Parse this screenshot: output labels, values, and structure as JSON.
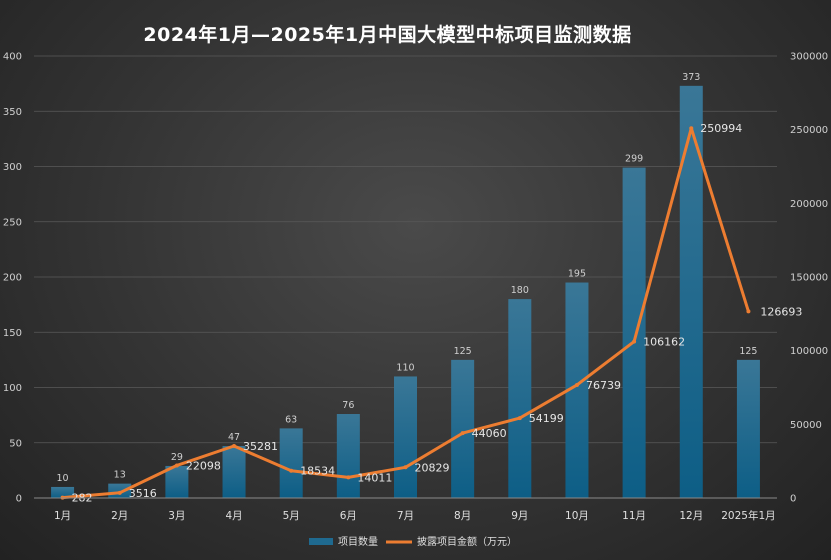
{
  "chart_data": {
    "type": "bar",
    "title": "2024年1月—2025年1月中国大模型中标项目监测数据",
    "categories": [
      "1月",
      "2月",
      "3月",
      "4月",
      "5月",
      "6月",
      "7月",
      "8月",
      "9月",
      "10月",
      "11月",
      "12月",
      "2025年1月"
    ],
    "series": [
      {
        "name": "项目数量",
        "type": "bar",
        "axis": "left",
        "color": "#1f6a90",
        "values": [
          10,
          13,
          29,
          47,
          63,
          76,
          110,
          125,
          180,
          195,
          299,
          373,
          125
        ]
      },
      {
        "name": "披露项目金额（万元）",
        "type": "line",
        "axis": "right",
        "color": "#ed7d31",
        "values": [
          282,
          3516,
          22098,
          35281,
          18534,
          14011,
          20829,
          44060,
          54199,
          76739,
          106162,
          250994,
          126693
        ]
      }
    ],
    "y_left": {
      "ylim": [
        0,
        400
      ],
      "ticks": [
        0,
        50,
        100,
        150,
        200,
        250,
        300,
        350,
        400
      ]
    },
    "y_right": {
      "ylim": [
        0,
        300000
      ],
      "ticks": [
        0,
        50000,
        100000,
        150000,
        200000,
        250000,
        300000
      ]
    },
    "grid": true,
    "legend": "bottom"
  }
}
